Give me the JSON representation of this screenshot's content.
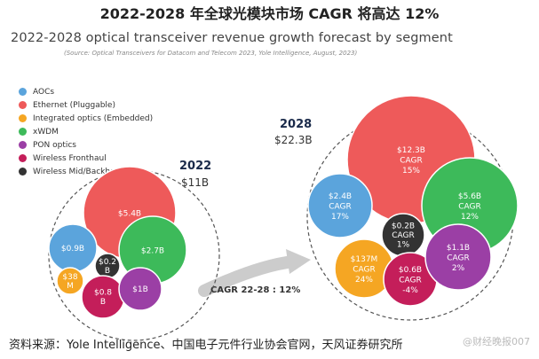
{
  "header": {
    "title": "2022-2028 年全球光模块市场 CAGR 将高达 12%"
  },
  "footer": {
    "source": "资料来源：Yole Intelligence、中国电子元件行业协会官网，天风证券研究所",
    "watermark": "@财经晚报007"
  },
  "colors": {
    "AOCs": "#5ba4dc",
    "Ethernet": "#ee5a5a",
    "Integrated": "#f5a623",
    "xWDM": "#3dba5a",
    "PON": "#9b3fa5",
    "Fronthaul": "#c41e5a",
    "Backhaul": "#333333"
  },
  "chart_data": {
    "type": "bubble",
    "title": "2022-2028 optical transceiver revenue growth forecast by segment",
    "subtitle": "(Source: Optical Transceivers for Datacom and Telecom 2023, Yole Intelligence, August, 2023)",
    "legend": [
      "AOCs",
      "Ethernet (Pluggable)",
      "Integrated optics (Embedded)",
      "xWDM",
      "PON optics",
      "Wireless Fronthaul",
      "Wireless Mid/Backhaul"
    ],
    "cagr_arrow_label": "CAGR 22-28 : 12%",
    "groups": [
      {
        "year": "2022",
        "total": "$11B",
        "segments": [
          {
            "name": "Ethernet (Pluggable)",
            "value_label": "$5.4B"
          },
          {
            "name": "AOCs",
            "value_label": "$0.9B"
          },
          {
            "name": "xWDM",
            "value_label": "$2.7B"
          },
          {
            "name": "Wireless Mid/Backhaul",
            "value_label": "$0.2 B"
          },
          {
            "name": "Integrated optics (Embedded)",
            "value_label": "$38 M"
          },
          {
            "name": "Wireless Fronthaul",
            "value_label": "$0.8 B"
          },
          {
            "name": "PON optics",
            "value_label": "$1B"
          }
        ]
      },
      {
        "year": "2028",
        "total": "$22.3B",
        "segments": [
          {
            "name": "Ethernet (Pluggable)",
            "value_label": "$12.3B",
            "cagr": "CAGR 15%"
          },
          {
            "name": "AOCs",
            "value_label": "$2.4B",
            "cagr": "CAGR 17%"
          },
          {
            "name": "xWDM",
            "value_label": "$5.6B",
            "cagr": "CAGR 12%"
          },
          {
            "name": "Wireless Mid/Backhaul",
            "value_label": "$0.2B",
            "cagr": "CAGR 1%"
          },
          {
            "name": "Integrated optics (Embedded)",
            "value_label": "$137M",
            "cagr": "CAGR 24%"
          },
          {
            "name": "Wireless Fronthaul",
            "value_label": "$0.6B",
            "cagr": "CAGR -4%"
          },
          {
            "name": "PON optics",
            "value_label": "$1.1B",
            "cagr": "CAGR 2%"
          }
        ]
      }
    ]
  }
}
